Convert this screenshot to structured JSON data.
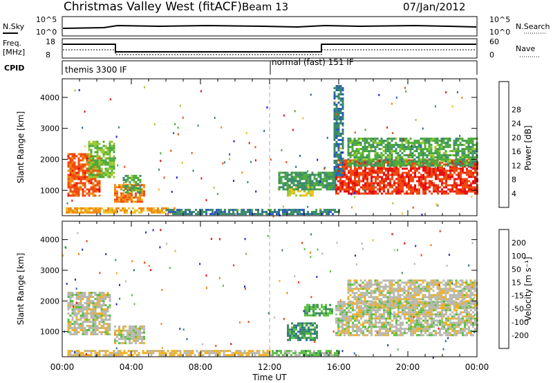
{
  "header": {
    "station": "Christmas Valley West (fitACF)",
    "beam": "Beam 13",
    "date": "07/Jan/2012"
  },
  "panel_labels": {
    "nsky": "N.Sky",
    "freq_1": "Freq.",
    "freq_2": "[MHz]",
    "cpid": "CPID",
    "nsearch": "N.Search",
    "nave": "Nave",
    "nsky_ticks": [
      "10^5",
      "10^0"
    ],
    "freq_ticks": [
      "18",
      "8"
    ],
    "nsearch_ticks": [
      "10^5",
      "10^0"
    ],
    "nave_ticks": [
      "60",
      "0"
    ]
  },
  "cpid_segments": [
    "themis 3300 IF",
    "normal (fast) 151 IF"
  ],
  "colorbars": {
    "power": {
      "label": "Power [dB]",
      "ticks": [
        "4",
        "8",
        "12",
        "16",
        "20",
        "24",
        "28"
      ],
      "colors": [
        "#1a1ae6",
        "#2a5fb8",
        "#3a8a6a",
        "#4caa3a",
        "#9ac830",
        "#f0c020",
        "#f08a10",
        "#f04a10",
        "#e81010"
      ]
    },
    "velocity": {
      "label": "Velocity [m s⁻¹]",
      "ticks": [
        "200",
        "100",
        "50",
        "15",
        "-15",
        "-50",
        "-100",
        "-200"
      ],
      "colors": [
        "#1a2ec8",
        "#2a6aa0",
        "#3a8a5a",
        "#58c040",
        "#b8b8b0",
        "#f0b020",
        "#f08010",
        "#f04010",
        "#e81010"
      ]
    }
  },
  "axes": {
    "ylabel": "Slant Range [km]",
    "y_ticks": [
      "1000",
      "2000",
      "3000",
      "4000"
    ],
    "x_ticks": [
      "00:00",
      "04:00",
      "08:00",
      "12:00",
      "16:00",
      "20:00",
      "00:00"
    ],
    "xlabel": "Time UT"
  },
  "chart_data": [
    {
      "type": "heatmap",
      "quantity": "Power",
      "xlabel": "Time UT",
      "ylabel": "Slant Range [km]",
      "xlim": [
        0,
        24
      ],
      "ylim": [
        180,
        4600
      ],
      "clim": [
        0,
        32
      ],
      "regions": [
        {
          "t": [
            0.3,
            2.2
          ],
          "r": [
            850,
            2200
          ],
          "value": 26
        },
        {
          "t": [
            1.5,
            3.0
          ],
          "r": [
            1400,
            2600
          ],
          "value": 14
        },
        {
          "t": [
            3.0,
            4.8
          ],
          "r": [
            650,
            1200
          ],
          "value": 24
        },
        {
          "t": [
            3.5,
            4.5
          ],
          "r": [
            950,
            1500
          ],
          "value": 12
        },
        {
          "t": [
            0.2,
            6.5
          ],
          "r": [
            250,
            450
          ],
          "value": 22
        },
        {
          "t": [
            6.0,
            16.0
          ],
          "r": [
            200,
            400
          ],
          "value": 8
        },
        {
          "t": [
            13.0,
            14.5
          ],
          "r": [
            800,
            1200
          ],
          "value": 18
        },
        {
          "t": [
            12.5,
            15.8
          ],
          "r": [
            1000,
            1600
          ],
          "value": 10
        },
        {
          "t": [
            15.8,
            24.0
          ],
          "r": [
            900,
            2000
          ],
          "value": 28
        },
        {
          "t": [
            16.5,
            24.0
          ],
          "r": [
            1800,
            2700
          ],
          "value": 12
        },
        {
          "t": [
            15.7,
            16.3
          ],
          "r": [
            1500,
            4400
          ],
          "value": 8
        }
      ]
    },
    {
      "type": "heatmap",
      "quantity": "Velocity",
      "xlabel": "Time UT",
      "ylabel": "Slant Range [km]",
      "xlim": [
        0,
        24
      ],
      "ylim": [
        180,
        4600
      ],
      "clim": [
        -200,
        200
      ],
      "regions": [
        {
          "t": [
            0.3,
            2.8
          ],
          "r": [
            900,
            2300
          ],
          "value": 0
        },
        {
          "t": [
            3.0,
            4.8
          ],
          "r": [
            600,
            1200
          ],
          "value": 0
        },
        {
          "t": [
            0.3,
            12.0
          ],
          "r": [
            200,
            400
          ],
          "value": 30
        },
        {
          "t": [
            12.0,
            16.0
          ],
          "r": [
            200,
            400
          ],
          "value": -40
        },
        {
          "t": [
            13.0,
            14.8
          ],
          "r": [
            700,
            1300
          ],
          "value": -90
        },
        {
          "t": [
            14.0,
            15.6
          ],
          "r": [
            1500,
            1900
          ],
          "value": -60
        },
        {
          "t": [
            15.8,
            24.0
          ],
          "r": [
            900,
            2000
          ],
          "value": 0
        },
        {
          "t": [
            16.5,
            24.0
          ],
          "r": [
            1800,
            2700
          ],
          "value": 5
        }
      ]
    }
  ]
}
